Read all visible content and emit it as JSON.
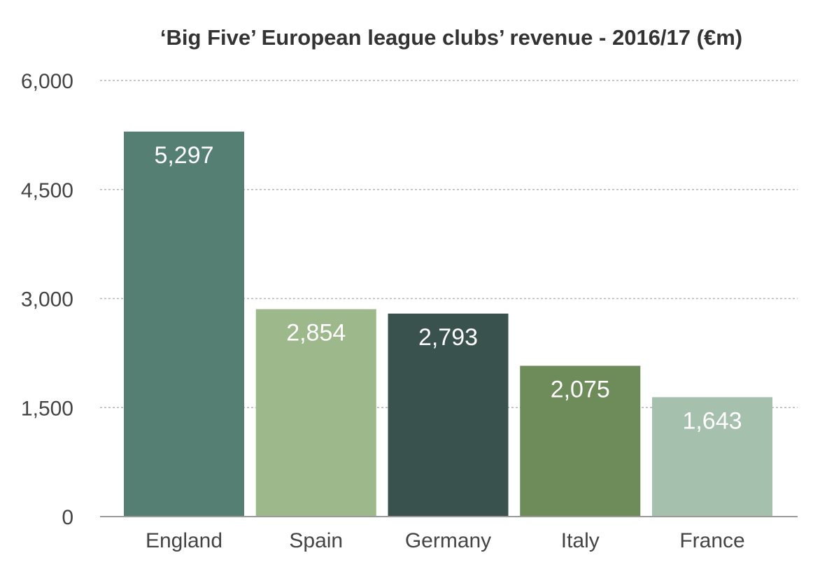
{
  "chart_data": {
    "type": "bar",
    "title": "‘Big Five’ European league clubs’ revenue - 2016/17 (€m)",
    "categories": [
      "England",
      "Spain",
      "Germany",
      "Italy",
      "France"
    ],
    "values": [
      5297,
      2854,
      2793,
      2075,
      1643
    ],
    "value_labels": [
      "5,297",
      "2,854",
      "2,793",
      "2,075",
      "1,643"
    ],
    "bar_colors": [
      "#567f74",
      "#9db98c",
      "#39524d",
      "#6e8c5a",
      "#a5c0ad"
    ],
    "ylim": [
      0,
      6000
    ],
    "yticks": [
      0,
      1500,
      3000,
      4500,
      6000
    ],
    "ytick_labels": [
      "0",
      "1,500",
      "3,000",
      "4,500",
      "6,000"
    ],
    "xlabel": "",
    "ylabel": "",
    "grid": true,
    "legend": "none"
  }
}
